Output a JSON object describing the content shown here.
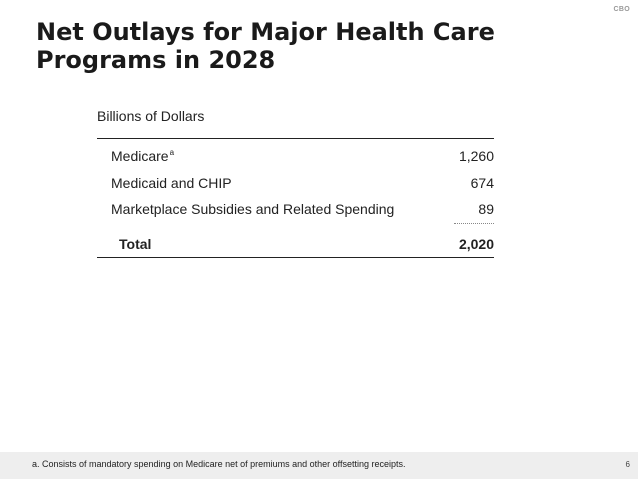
{
  "header": {
    "brand": "CBO",
    "title": "Net Outlays for Major Health Care Programs in 2028"
  },
  "table": {
    "unit_label": "Billions of Dollars",
    "rows": [
      {
        "label": "Medicare",
        "footnote_marker": "a",
        "value": "1,260"
      },
      {
        "label": "Medicaid and CHIP",
        "value": "674"
      },
      {
        "label": "Marketplace Subsidies and Related Spending",
        "value": "89"
      }
    ],
    "total": {
      "label": "Total",
      "value": "2,020"
    }
  },
  "footer": {
    "footnote": "a. Consists of mandatory spending on Medicare net of premiums and other offsetting receipts.",
    "page_number": "6"
  }
}
